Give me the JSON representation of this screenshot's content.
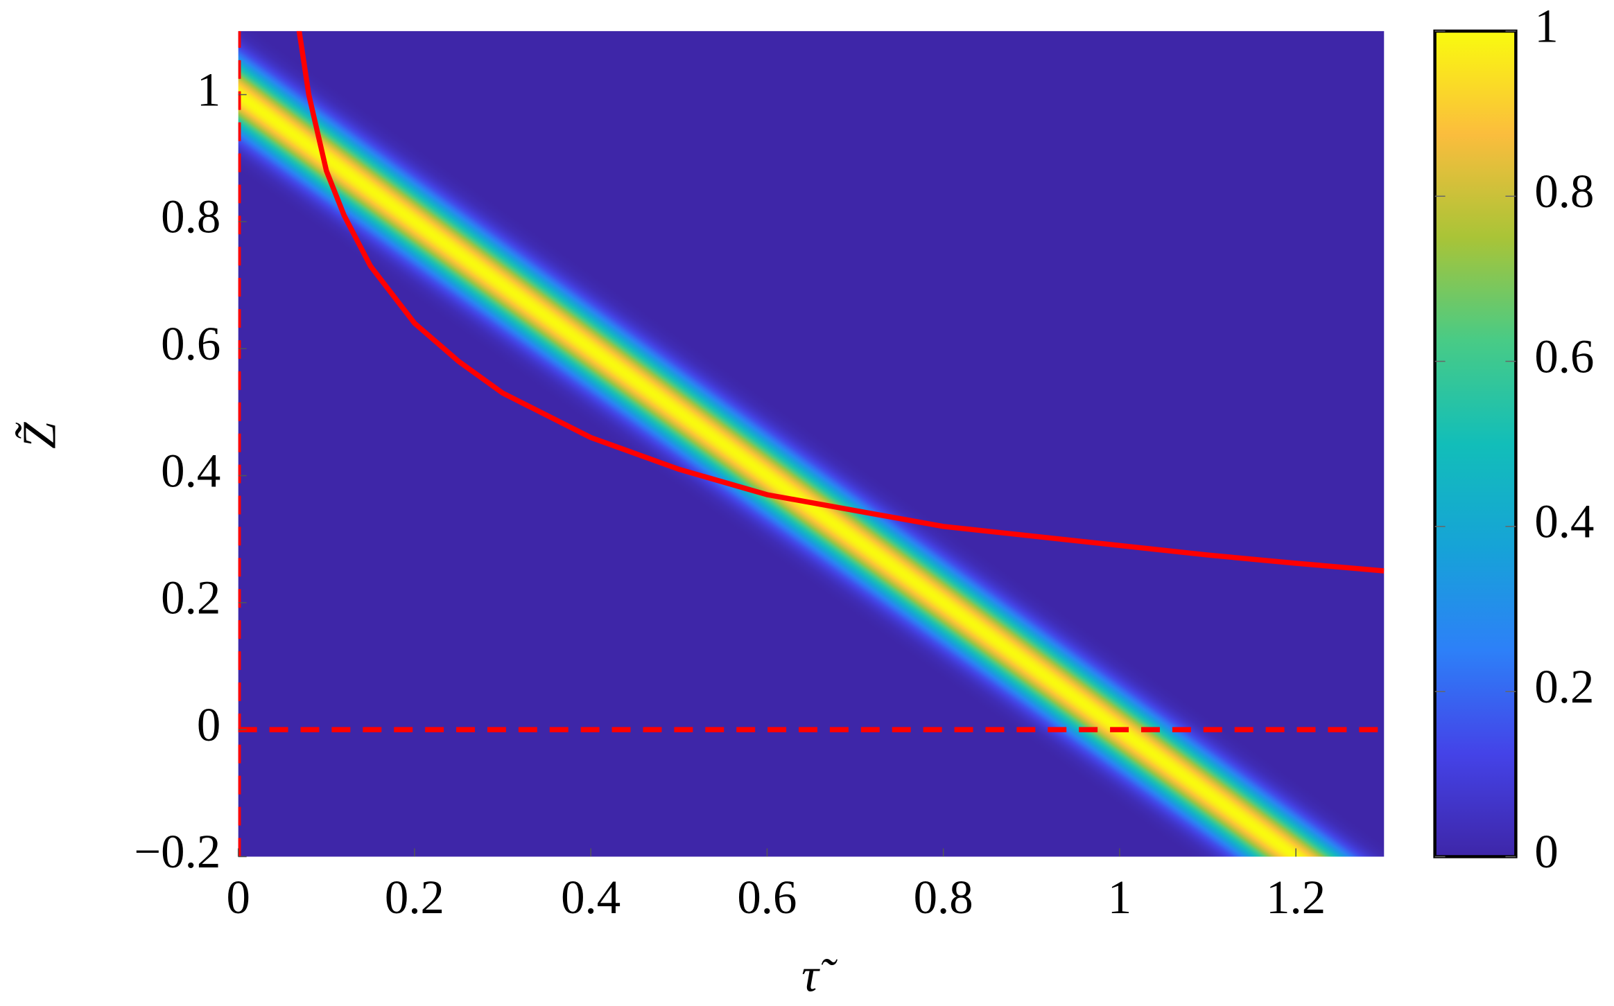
{
  "chart_data": {
    "type": "heatmap",
    "xlabel": "τ̃",
    "ylabel": "Z̃",
    "xlim": [
      0,
      1.3
    ],
    "ylim": [
      -0.2,
      1.1
    ],
    "xticks": [
      0,
      0.2,
      0.4,
      0.6,
      0.8,
      1,
      1.2
    ],
    "yticks": [
      {
        "value": -0.2,
        "label": "−0.2"
      },
      0,
      0.2,
      0.4,
      0.6,
      0.8,
      1
    ],
    "clim": [
      0,
      1
    ],
    "cticks": [
      0,
      0.2,
      0.4,
      0.6,
      0.8,
      1
    ],
    "colormap": [
      {
        "value": 0,
        "color": "#3e26a8"
      },
      {
        "value": 0.125,
        "color": "#4443e8"
      },
      {
        "value": 0.25,
        "color": "#2d80f8"
      },
      {
        "value": 0.375,
        "color": "#16a3d7"
      },
      {
        "value": 0.5,
        "color": "#12beb9"
      },
      {
        "value": 0.625,
        "color": "#48cb86"
      },
      {
        "value": 0.75,
        "color": "#a9c437"
      },
      {
        "value": 0.875,
        "color": "#fbbd3d"
      },
      {
        "value": 1,
        "color": "#f9fb0e"
      }
    ],
    "band": {
      "x": [
        0,
        1.3
      ],
      "y": [
        1,
        -0.3
      ],
      "halfwidth": 0.12
    },
    "series": [
      {
        "style": "solid",
        "color": "#ff0000",
        "x": [
          0.068,
          0.08,
          0.1,
          0.12,
          0.15,
          0.2,
          0.25,
          0.3,
          0.4,
          0.5,
          0.6,
          0.7,
          0.8,
          0.9,
          1.0,
          1.1,
          1.2,
          1.3
        ],
        "values": [
          1.11,
          1.0,
          0.88,
          0.81,
          0.73,
          0.64,
          0.58,
          0.53,
          0.46,
          0.41,
          0.37,
          0.345,
          0.32,
          0.305,
          0.29,
          0.275,
          0.262,
          0.25
        ]
      },
      {
        "style": "dashed",
        "color": "#ff0000",
        "x": [
          0,
          0
        ],
        "values": [
          -0.2,
          1.1
        ]
      },
      {
        "style": "dashed",
        "color": "#ff0000",
        "x": [
          0,
          1.3
        ],
        "values": [
          0,
          0
        ]
      }
    ]
  }
}
